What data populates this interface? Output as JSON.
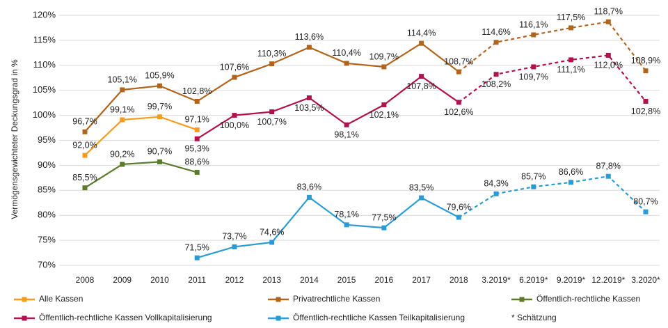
{
  "chart_data": {
    "type": "line",
    "y_label": "Vermögensgewichteter Deckungsgrad in %",
    "categories": [
      "2008",
      "2009",
      "2010",
      "2011",
      "2012",
      "2013",
      "2014",
      "2015",
      "2016",
      "2017",
      "2018",
      "3.2019*",
      "6.2019*",
      "9.2019*",
      "12.2019*",
      "3.2020*"
    ],
    "ylim": [
      70,
      120
    ],
    "yticks": [
      {
        "value": 70,
        "label": "70%"
      },
      {
        "value": 75,
        "label": "75%"
      },
      {
        "value": 80,
        "label": "80%"
      },
      {
        "value": 85,
        "label": "85%"
      },
      {
        "value": 90,
        "label": "90%"
      },
      {
        "value": 95,
        "label": "95%"
      },
      {
        "value": 100,
        "label": "100%"
      },
      {
        "value": 105,
        "label": "105%"
      },
      {
        "value": 110,
        "label": "110%"
      },
      {
        "value": 115,
        "label": "115%"
      },
      {
        "value": 120,
        "label": "120%"
      }
    ],
    "grid": true,
    "legend": "bottom",
    "dashed_from_index": 10,
    "legend_note": "* Schätzung",
    "series": [
      {
        "name": "Alle Kassen",
        "color": "#f39c1f",
        "label_position": "above",
        "values": [
          92.0,
          99.1,
          99.7,
          97.1,
          null,
          null,
          null,
          null,
          null,
          null,
          null,
          null,
          null,
          null,
          null,
          null
        ],
        "value_labels": [
          "92,0%",
          "99,1%",
          "99,7%",
          "97,1%",
          null,
          null,
          null,
          null,
          null,
          null,
          null,
          null,
          null,
          null,
          null,
          null
        ]
      },
      {
        "name": "Privatrechtliche Kassen",
        "color": "#b0651f",
        "label_position": "above",
        "values": [
          96.7,
          105.1,
          105.9,
          102.8,
          107.6,
          110.3,
          113.6,
          110.4,
          109.7,
          114.4,
          108.7,
          114.6,
          116.1,
          117.5,
          118.7,
          108.9
        ],
        "value_labels": [
          "96,7%",
          "105,1%",
          "105,9%",
          "102,8%",
          "107,6%",
          "110,3%",
          "113,6%",
          "110,4%",
          "109,7%",
          "114,4%",
          "108,7%",
          "114,6%",
          "116,1%",
          "117,5%",
          "118,7%",
          "108,9%"
        ]
      },
      {
        "name": "Öffentlich-rechtliche Kassen",
        "color": "#5b7a2b",
        "label_position": "above",
        "values": [
          85.5,
          90.2,
          90.7,
          88.6,
          null,
          null,
          null,
          null,
          null,
          null,
          null,
          null,
          null,
          null,
          null,
          null
        ],
        "value_labels": [
          "85,5%",
          "90,2%",
          "90,7%",
          "88,6%",
          null,
          null,
          null,
          null,
          null,
          null,
          null,
          null,
          null,
          null,
          null,
          null
        ]
      },
      {
        "name": "Öffentlich-rechtliche Kassen Vollkapitalisierung",
        "color": "#b0124e",
        "label_position": "below",
        "values": [
          null,
          null,
          null,
          95.3,
          100.0,
          100.7,
          103.5,
          98.1,
          102.1,
          107.8,
          102.6,
          108.2,
          109.7,
          111.1,
          112.0,
          102.8
        ],
        "value_labels": [
          null,
          null,
          null,
          "95,3%",
          "100,0%",
          "100,7%",
          "103,5%",
          "98,1%",
          "102,1%",
          "107,8%",
          "102,6%",
          "108,2%",
          "109,7%",
          "111,1%",
          "112,0%",
          "102,8%"
        ]
      },
      {
        "name": "Öffentlich-rechtliche Kassen Teilkapitalisierung",
        "color": "#2a9bd5",
        "label_position": "above",
        "values": [
          null,
          null,
          null,
          71.5,
          73.7,
          74.6,
          83.6,
          78.1,
          77.5,
          83.5,
          79.6,
          84.3,
          85.7,
          86.6,
          87.8,
          80.7
        ],
        "value_labels": [
          null,
          null,
          null,
          "71,5%",
          "73,7%",
          "74,6%",
          "83,6%",
          "78,1%",
          "77,5%",
          "83,5%",
          "79,6%",
          "84,3%",
          "85,7%",
          "86,6%",
          "87,8%",
          "80,7%"
        ]
      }
    ]
  }
}
